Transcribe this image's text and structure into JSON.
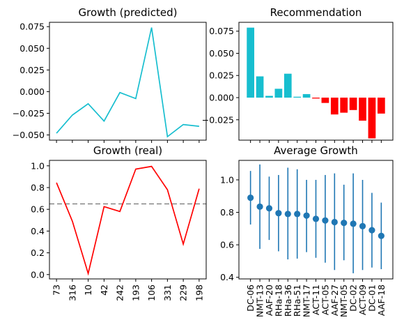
{
  "chart_data": [
    {
      "id": "tl",
      "type": "line",
      "title": "Growth (predicted)",
      "color": "#17becf",
      "x_labels": [
        "73",
        "316",
        "10",
        "42",
        "242",
        "193",
        "106",
        "331",
        "229",
        "198"
      ],
      "values": [
        -0.048,
        -0.027,
        -0.014,
        -0.034,
        -0.001,
        -0.008,
        0.074,
        -0.052,
        -0.038,
        -0.04
      ],
      "ylim": [
        -0.056,
        0.08
      ],
      "yticks": [
        -0.05,
        -0.025,
        0.0,
        0.025,
        0.05,
        0.075
      ],
      "ytick_labels": [
        "−0.050",
        "−0.025",
        "0.000",
        "0.025",
        "0.050",
        "0.075"
      ],
      "xticklabels_visible": false
    },
    {
      "id": "tr",
      "type": "bar",
      "title": "Recommendation",
      "positive_color": "#17becf",
      "negative_color": "#ff0000",
      "categories": [
        "DC-06",
        "NMT-13",
        "AAF-20",
        "RHa-18",
        "RHa-36",
        "RHa-51",
        "NMT-17",
        "ACT-11",
        "ACT-05",
        "AAF-27",
        "NMT-05",
        "DC-02",
        "ACT-09",
        "DC-01",
        "AAF-18"
      ],
      "values": [
        0.079,
        0.024,
        0.002,
        0.01,
        0.027,
        0.001,
        0.004,
        -0.001,
        -0.006,
        -0.019,
        -0.017,
        -0.014,
        -0.026,
        -0.046,
        -0.018
      ],
      "ylim": [
        -0.048,
        0.085
      ],
      "yticks": [
        -0.025,
        0.0,
        0.025,
        0.05,
        0.075
      ],
      "ytick_labels": [
        "−0.025",
        "0.000",
        "0.025",
        "0.050",
        "0.075"
      ],
      "xticklabels_visible": false
    },
    {
      "id": "bl",
      "type": "line",
      "title": "Growth (real)",
      "color": "#ff0000",
      "x_labels": [
        "73",
        "316",
        "10",
        "42",
        "242",
        "193",
        "106",
        "331",
        "229",
        "198"
      ],
      "values": [
        0.845,
        0.49,
        0.01,
        0.625,
        0.58,
        0.97,
        0.995,
        0.78,
        0.28,
        0.79
      ],
      "hline": 0.65,
      "ylim": [
        -0.04,
        1.05
      ],
      "yticks": [
        0.0,
        0.2,
        0.4,
        0.6,
        0.8,
        1.0
      ],
      "ytick_labels": [
        "0.0",
        "0.2",
        "0.4",
        "0.6",
        "0.8",
        "1.0"
      ]
    },
    {
      "id": "br",
      "type": "scatter",
      "title": "Average Growth",
      "color": "#1f77b4",
      "categories": [
        "DC-06",
        "NMT-13",
        "AAF-20",
        "RHa-18",
        "RHa-36",
        "RHa-51",
        "NMT-17",
        "ACT-11",
        "ACT-05",
        "AAF-27",
        "NMT-05",
        "DC-02",
        "ACT-09",
        "DC-01",
        "AAF-18"
      ],
      "values": [
        0.89,
        0.835,
        0.825,
        0.795,
        0.79,
        0.79,
        0.78,
        0.76,
        0.75,
        0.74,
        0.735,
        0.73,
        0.715,
        0.69,
        0.655
      ],
      "err_low": [
        0.725,
        0.575,
        0.63,
        0.56,
        0.51,
        0.515,
        0.555,
        0.52,
        0.49,
        0.445,
        0.505,
        0.425,
        0.445,
        0.46,
        0.45
      ],
      "err_high": [
        1.055,
        1.095,
        1.02,
        1.03,
        1.075,
        1.065,
        1.0,
        1.0,
        1.03,
        1.04,
        0.97,
        1.04,
        1.0,
        0.92,
        0.86
      ],
      "ylim": [
        0.39,
        1.12
      ],
      "yticks": [
        0.4,
        0.6,
        0.8,
        1.0
      ],
      "ytick_labels": [
        "0.4",
        "0.6",
        "0.8",
        "1.0"
      ]
    }
  ]
}
